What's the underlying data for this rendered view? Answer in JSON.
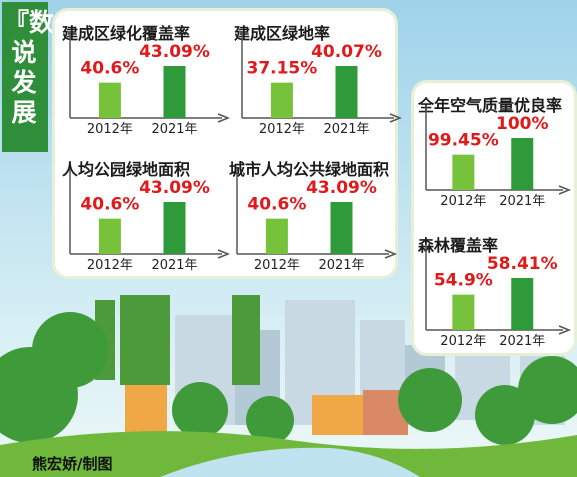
{
  "banner": {
    "title": "『数』说发展"
  },
  "credit": "熊宏娇/制图",
  "colors": {
    "bar_2012": "#77c23b",
    "bar_2021": "#2e9a3a",
    "value": "#e0191b",
    "axis": "#555555"
  },
  "chart_data": [
    {
      "type": "bar",
      "title": "建成区绿化覆盖率",
      "categories": [
        "2012年",
        "2021年"
      ],
      "values": [
        40.6,
        43.09
      ],
      "labels": [
        "40.6%",
        "43.09%"
      ]
    },
    {
      "type": "bar",
      "title": "建成区绿地率",
      "categories": [
        "2012年",
        "2021年"
      ],
      "values": [
        37.15,
        40.07
      ],
      "labels": [
        "37.15%",
        "40.07%"
      ]
    },
    {
      "type": "bar",
      "title": "人均公园绿地面积",
      "categories": [
        "2012年",
        "2021年"
      ],
      "values": [
        40.6,
        43.09
      ],
      "labels": [
        "40.6%",
        "43.09%"
      ]
    },
    {
      "type": "bar",
      "title": "城市人均公共绿地面积",
      "categories": [
        "2012年",
        "2021年"
      ],
      "values": [
        40.6,
        43.09
      ],
      "labels": [
        "40.6%",
        "43.09%"
      ]
    },
    {
      "type": "bar",
      "title": "全年空气质量优良率",
      "categories": [
        "2012年",
        "2021年"
      ],
      "values": [
        99.45,
        100
      ],
      "labels": [
        "99.45%",
        "100%"
      ]
    },
    {
      "type": "bar",
      "title": "森林覆盖率",
      "categories": [
        "2012年",
        "2021年"
      ],
      "values": [
        54.9,
        58.41
      ],
      "labels": [
        "54.9%",
        "58.41%"
      ]
    }
  ]
}
